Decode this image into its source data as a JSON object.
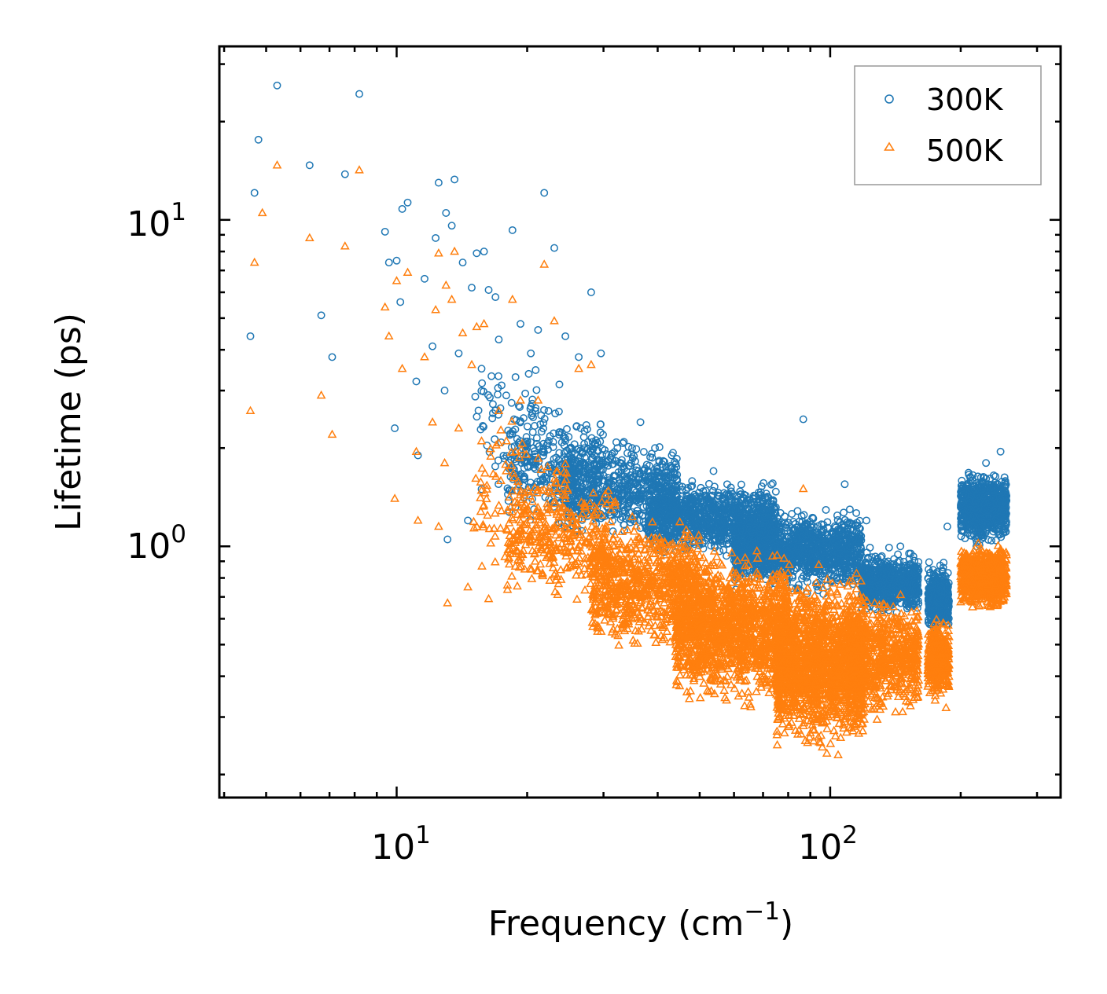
{
  "chart_data": {
    "type": "scatter",
    "title": "",
    "xlabel": "Frequency (cm",
    "xlabel_sup": "−1",
    "xlabel_close": ")",
    "ylabel": "Lifetime (ps)",
    "xscale": "log",
    "yscale": "log",
    "xlim": [
      3.9,
      340
    ],
    "ylim": [
      0.17,
      34
    ],
    "x_ticks": [
      {
        "value": 10,
        "base": "10",
        "exp": "1"
      },
      {
        "value": 100,
        "base": "10",
        "exp": "2"
      }
    ],
    "y_ticks": [
      {
        "value": 1,
        "base": "10",
        "exp": "0"
      },
      {
        "value": 10,
        "base": "10",
        "exp": "1"
      }
    ],
    "legend_position": "top-right",
    "series": [
      {
        "name": "300K",
        "marker": "circle",
        "color": "#1f77b4",
        "points": [
          [
            4.6,
            4.4
          ],
          [
            4.7,
            12.1
          ],
          [
            4.8,
            17.6
          ],
          [
            5.3,
            25.8
          ],
          [
            6.3,
            14.7
          ],
          [
            6.7,
            5.1
          ],
          [
            7.1,
            3.8
          ],
          [
            7.6,
            13.8
          ],
          [
            8.2,
            24.3
          ],
          [
            9.4,
            9.2
          ],
          [
            9.6,
            7.4
          ],
          [
            9.9,
            2.3
          ],
          [
            10.0,
            7.5
          ],
          [
            10.2,
            5.6
          ],
          [
            10.3,
            10.8
          ],
          [
            10.6,
            11.3
          ],
          [
            11.1,
            3.2
          ],
          [
            11.2,
            1.9
          ],
          [
            11.6,
            6.6
          ],
          [
            12.1,
            4.1
          ],
          [
            12.3,
            8.8
          ],
          [
            12.5,
            13.0
          ],
          [
            12.9,
            3.0
          ],
          [
            13.0,
            10.5
          ],
          [
            13.1,
            1.05
          ],
          [
            13.4,
            9.6
          ],
          [
            13.6,
            13.3
          ],
          [
            13.9,
            3.9
          ],
          [
            14.2,
            7.4
          ],
          [
            14.6,
            1.2
          ],
          [
            14.9,
            6.2
          ],
          [
            15.3,
            7.9
          ],
          [
            15.7,
            3.5
          ],
          [
            15.9,
            8.0
          ],
          [
            16.3,
            6.1
          ],
          [
            16.9,
            5.8
          ],
          [
            17.2,
            4.3
          ],
          [
            17.9,
            2.9
          ],
          [
            18.5,
            9.3
          ],
          [
            18.8,
            3.3
          ],
          [
            19.3,
            4.8
          ],
          [
            20.4,
            3.9
          ],
          [
            21.2,
            4.6
          ],
          [
            21.9,
            12.1
          ],
          [
            22.4,
            2.6
          ],
          [
            23.1,
            8.2
          ],
          [
            24.5,
            4.4
          ],
          [
            26.3,
            3.8
          ],
          [
            28.1,
            6.0
          ],
          [
            29.6,
            3.9
          ],
          [
            32.3,
            2.0
          ],
          [
            36.5,
            2.4
          ],
          [
            43.1,
            1.9
          ],
          [
            53.8,
            1.7
          ],
          [
            70.9,
            1.1
          ],
          [
            86.7,
            2.45
          ],
          [
            108.0,
            1.55
          ],
          [
            121.2,
            1.2
          ],
          [
            145.2,
            1.0
          ],
          [
            168.6,
            0.85
          ],
          [
            186.3,
            1.15
          ],
          [
            228.8,
            1.8
          ],
          [
            247.1,
            1.95
          ]
        ],
        "clusters": [
          {
            "x": [
              15,
              24
            ],
            "lo": 1.3,
            "hi": 4.0,
            "n": 90
          },
          {
            "x": [
              18,
              30
            ],
            "lo": 1.1,
            "hi": 2.8,
            "n": 280
          },
          {
            "x": [
              24,
              45
            ],
            "lo": 1.0,
            "hi": 2.2,
            "n": 650
          },
          {
            "x": [
              38,
              75
            ],
            "lo": 0.9,
            "hi": 1.65,
            "n": 1100
          },
          {
            "x": [
              60,
              118
            ],
            "lo": 0.7,
            "hi": 1.35,
            "n": 1300
          },
          {
            "x": [
              118,
              160
            ],
            "lo": 0.6,
            "hi": 1.0,
            "n": 700
          },
          {
            "x": [
              168,
              188
            ],
            "lo": 0.52,
            "hi": 0.92,
            "n": 380
          },
          {
            "x": [
              200,
              255
            ],
            "lo": 0.98,
            "hi": 1.75,
            "n": 750
          }
        ]
      },
      {
        "name": "500K",
        "marker": "triangle",
        "color": "#ff7f0e",
        "points": [
          [
            4.6,
            2.6
          ],
          [
            4.7,
            7.4
          ],
          [
            4.9,
            10.5
          ],
          [
            5.3,
            14.7
          ],
          [
            6.3,
            8.8
          ],
          [
            6.7,
            2.9
          ],
          [
            7.1,
            2.2
          ],
          [
            7.6,
            8.3
          ],
          [
            8.2,
            14.2
          ],
          [
            9.4,
            5.4
          ],
          [
            9.6,
            4.4
          ],
          [
            9.9,
            1.4
          ],
          [
            10.0,
            6.5
          ],
          [
            10.3,
            3.5
          ],
          [
            10.6,
            6.9
          ],
          [
            11.1,
            1.95
          ],
          [
            11.2,
            1.2
          ],
          [
            11.6,
            3.8
          ],
          [
            12.1,
            2.4
          ],
          [
            12.3,
            5.3
          ],
          [
            12.5,
            7.9
          ],
          [
            12.5,
            1.15
          ],
          [
            12.9,
            1.8
          ],
          [
            13.0,
            6.3
          ],
          [
            13.1,
            0.67
          ],
          [
            13.4,
            5.7
          ],
          [
            13.6,
            8.0
          ],
          [
            13.9,
            2.3
          ],
          [
            14.2,
            4.5
          ],
          [
            14.6,
            0.75
          ],
          [
            14.9,
            3.6
          ],
          [
            15.3,
            4.7
          ],
          [
            15.7,
            2.1
          ],
          [
            15.9,
            4.8
          ],
          [
            16.3,
            0.69
          ],
          [
            17.2,
            2.6
          ],
          [
            17.9,
            1.7
          ],
          [
            18.5,
            5.7
          ],
          [
            18.8,
            1.95
          ],
          [
            19.3,
            2.8
          ],
          [
            21.2,
            2.8
          ],
          [
            21.9,
            7.3
          ],
          [
            23.1,
            4.9
          ],
          [
            26.3,
            3.5
          ],
          [
            28.1,
            3.6
          ],
          [
            86.7,
            1.5
          ],
          [
            185.0,
            0.32
          ],
          [
            247.1,
            0.98
          ]
        ],
        "clusters": [
          {
            "x": [
              15,
              25
            ],
            "lo": 0.75,
            "hi": 2.6,
            "n": 120
          },
          {
            "x": [
              18,
              32
            ],
            "lo": 0.62,
            "hi": 1.8,
            "n": 320
          },
          {
            "x": [
              28,
              50
            ],
            "lo": 0.45,
            "hi": 1.3,
            "n": 800
          },
          {
            "x": [
              44,
              80
            ],
            "lo": 0.3,
            "hi": 1.05,
            "n": 1500
          },
          {
            "x": [
              75,
              120
            ],
            "lo": 0.22,
            "hi": 0.9,
            "n": 1700
          },
          {
            "x": [
              110,
              160
            ],
            "lo": 0.28,
            "hi": 0.75,
            "n": 700
          },
          {
            "x": [
              168,
              188
            ],
            "lo": 0.33,
            "hi": 0.62,
            "n": 380
          },
          {
            "x": [
              200,
              255
            ],
            "lo": 0.62,
            "hi": 1.05,
            "n": 750
          }
        ]
      }
    ]
  }
}
